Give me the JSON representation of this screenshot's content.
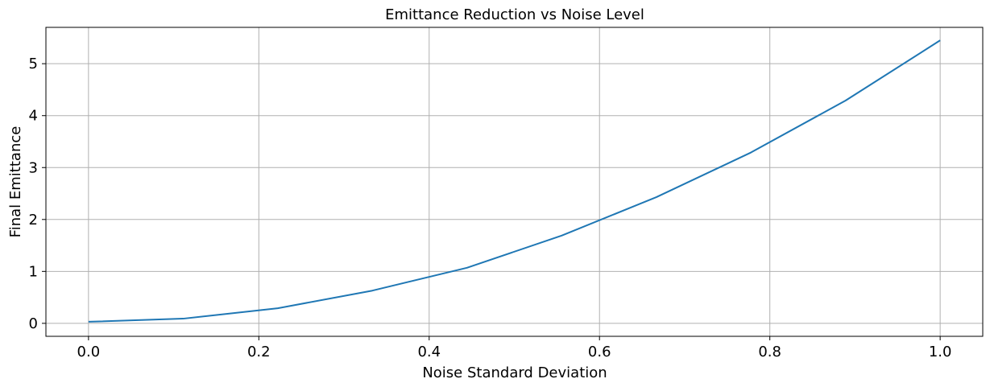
{
  "chart_data": {
    "type": "line",
    "title": "Emittance Reduction vs Noise Level",
    "xlabel": "Noise Standard Deviation",
    "ylabel": "Final Emittance",
    "xlim": [
      -0.05,
      1.05
    ],
    "ylim": [
      -0.25,
      5.7
    ],
    "xticks": [
      0.0,
      0.2,
      0.4,
      0.6,
      0.8,
      1.0
    ],
    "xtick_labels": [
      "0.0",
      "0.2",
      "0.4",
      "0.6",
      "0.8",
      "1.0"
    ],
    "yticks": [
      0,
      1,
      2,
      3,
      4,
      5
    ],
    "ytick_labels": [
      "0",
      "1",
      "2",
      "3",
      "4",
      "5"
    ],
    "grid": true,
    "series": [
      {
        "color": "#1f77b4",
        "x": [
          0.0,
          0.1111,
          0.2222,
          0.3333,
          0.4444,
          0.5556,
          0.6667,
          0.7778,
          0.8889,
          1.0
        ],
        "y": [
          0.03,
          0.09,
          0.29,
          0.63,
          1.07,
          1.69,
          2.43,
          3.29,
          4.29,
          5.45
        ]
      }
    ]
  }
}
